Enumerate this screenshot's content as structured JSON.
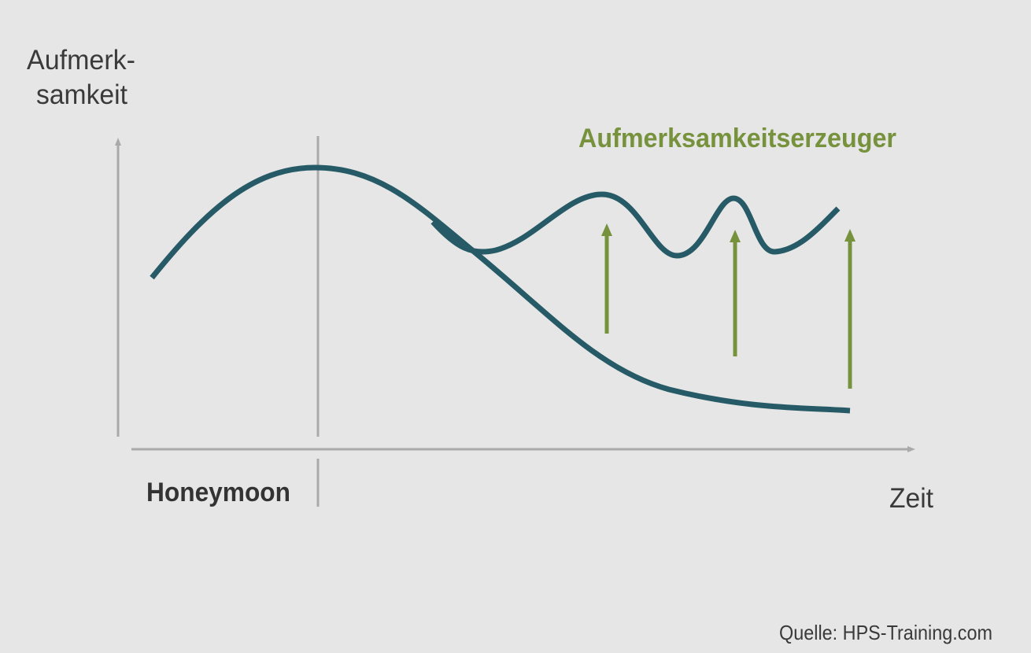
{
  "y_axis_label": [
    "Aufmerk-",
    "samkeit"
  ],
  "annotation": "Aufmerksamkeitserzeuger",
  "phase_label": "Honeymoon",
  "x_axis_label": "Zeit",
  "source": "Quelle: HPS-Training.com"
}
